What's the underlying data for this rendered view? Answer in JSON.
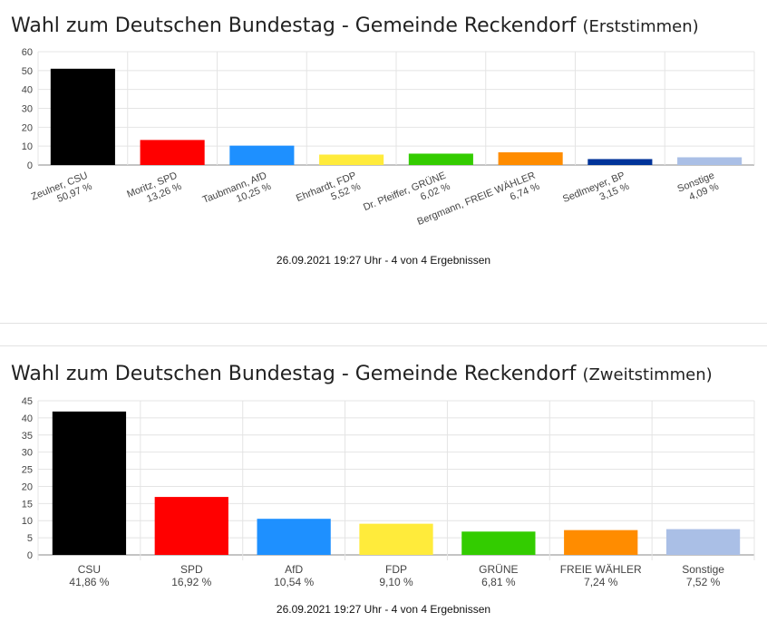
{
  "charts": [
    {
      "title": "Wahl zum Deutschen Bundestag - Gemeinde Reckendorf",
      "subtitle": "(Erststimmen)",
      "footer": "26.09.2021 19:27 Uhr - 4 von 4 Ergebnissen"
    },
    {
      "title": "Wahl zum Deutschen Bundestag - Gemeinde Reckendorf",
      "subtitle": "(Zweitstimmen)",
      "footer": "26.09.2021 19:27 Uhr - 4 von 4 Ergebnissen"
    }
  ],
  "chart_data": [
    {
      "type": "bar",
      "title": "Wahl zum Deutschen Bundestag - Gemeinde Reckendorf (Erststimmen)",
      "categories": [
        "Zeulner, CSU",
        "Moritz, SPD",
        "Taubmann, AfD",
        "Ehrhardt, FDP",
        "Dr. Pfeiffer, GRÜNE",
        "Bergmann, FREIE WÄHLER",
        "Sedlmeyer, BP",
        "Sonstige"
      ],
      "values": [
        50.97,
        13.26,
        10.25,
        5.52,
        6.02,
        6.74,
        3.15,
        4.09
      ],
      "value_labels": [
        "50,97 %",
        "13,26 %",
        "10,25 %",
        "5,52 %",
        "6,02 %",
        "6,74 %",
        "3,15 %",
        "4,09 %"
      ],
      "colors": [
        "#000000",
        "#ff0000",
        "#1e90ff",
        "#ffeb3b",
        "#33cc00",
        "#ff8c00",
        "#003399",
        "#aabfe6"
      ],
      "yticks": [
        0,
        10,
        20,
        30,
        40,
        50,
        60
      ],
      "ylim": [
        0,
        60
      ],
      "xlabel": "",
      "ylabel": "",
      "grid": true,
      "label_rotation": "slanted"
    },
    {
      "type": "bar",
      "title": "Wahl zum Deutschen Bundestag - Gemeinde Reckendorf (Zweitstimmen)",
      "categories": [
        "CSU",
        "SPD",
        "AfD",
        "FDP",
        "GRÜNE",
        "FREIE WÄHLER",
        "Sonstige"
      ],
      "values": [
        41.86,
        16.92,
        10.54,
        9.1,
        6.81,
        7.24,
        7.52
      ],
      "value_labels": [
        "41,86 %",
        "16,92 %",
        "10,54 %",
        "9,10 %",
        "6,81 %",
        "7,24 %",
        "7,52 %"
      ],
      "colors": [
        "#000000",
        "#ff0000",
        "#1e90ff",
        "#ffeb3b",
        "#33cc00",
        "#ff8c00",
        "#aabfe6"
      ],
      "yticks": [
        0,
        5,
        10,
        15,
        20,
        25,
        30,
        35,
        40,
        45
      ],
      "ylim": [
        0,
        45
      ],
      "xlabel": "",
      "ylabel": "",
      "grid": true,
      "label_rotation": "horizontal"
    }
  ]
}
